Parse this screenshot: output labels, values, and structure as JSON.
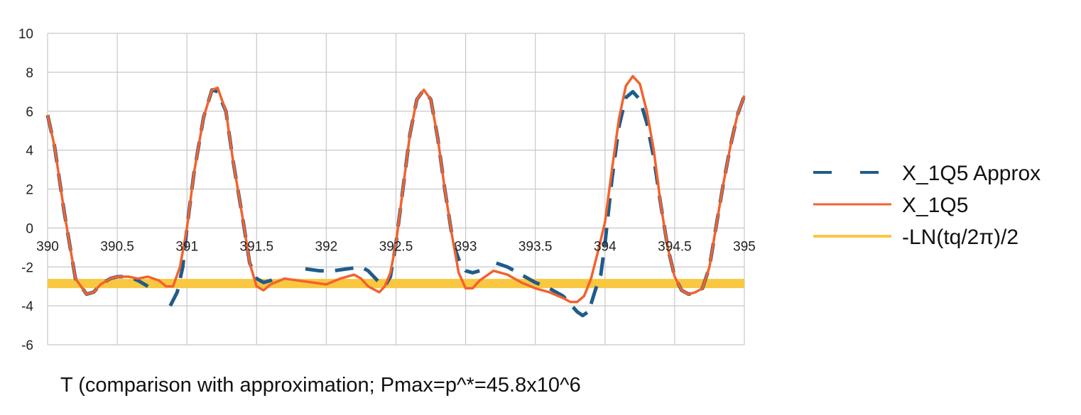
{
  "chart_data": {
    "type": "line",
    "xlabel": "T (comparison with approximation; Pmax=p^*=45.8x10^6",
    "ylabel": "",
    "xlim": [
      390,
      395
    ],
    "ylim": [
      -6,
      10
    ],
    "grid": true,
    "legend_position": "right",
    "x_ticks": [
      "390",
      "390.5",
      "391",
      "391.5",
      "392",
      "392.5",
      "393",
      "393.5",
      "394",
      "394.5",
      "395"
    ],
    "y_ticks": [
      "10",
      "8",
      "6",
      "4",
      "2",
      "0",
      "-2",
      "-4",
      "-6"
    ],
    "series": [
      {
        "name": "X_1Q5 Approx",
        "color": "#1f5c8a",
        "style": "dashed",
        "segments": [
          {
            "x": [
              390.0,
              390.05,
              390.12,
              390.2,
              390.28,
              390.33,
              390.38,
              390.45,
              390.5,
              390.58,
              390.65,
              390.72
            ],
            "y": [
              5.8,
              4.2,
              0.8,
              -2.6,
              -3.4,
              -3.3,
              -2.9,
              -2.6,
              -2.5,
              -2.5,
              -2.7,
              -3.0
            ]
          },
          {
            "x": [
              390.88,
              390.93,
              390.97,
              391.0,
              391.05,
              391.12,
              391.18,
              391.22,
              391.28,
              391.33,
              391.4,
              391.45,
              391.5,
              391.55,
              391.6,
              391.66
            ],
            "y": [
              -4.0,
              -3.3,
              -2.0,
              0.0,
              2.8,
              5.7,
              7.1,
              7.0,
              6.0,
              3.5,
              0.5,
              -1.8,
              -2.6,
              -2.8,
              -2.7,
              -2.4
            ]
          },
          {
            "x": [
              391.85,
              391.95,
              392.05,
              392.15,
              392.25,
              392.3,
              392.38,
              392.42,
              392.46,
              392.5,
              392.55,
              392.6,
              392.65,
              392.7,
              392.75,
              392.8,
              392.85,
              392.9,
              392.93,
              392.96,
              393.0,
              393.05,
              393.1
            ],
            "y": [
              -2.1,
              -2.2,
              -2.2,
              -2.1,
              -2.0,
              -2.2,
              -2.8,
              -3.0,
              -2.5,
              -0.8,
              2.0,
              4.8,
              6.6,
              7.1,
              6.6,
              4.6,
              2.0,
              -0.3,
              -1.2,
              -1.8,
              -2.2,
              -2.3,
              -2.2
            ]
          },
          {
            "x": [
              393.22,
              393.3,
              393.4,
              393.5,
              393.6,
              393.7,
              393.75,
              393.8,
              393.84,
              393.88
            ],
            "y": [
              -1.8,
              -2.0,
              -2.4,
              -2.8,
              -3.1,
              -3.5,
              -3.9,
              -4.3,
              -4.5,
              -4.3
            ]
          },
          {
            "x": [
              393.9,
              393.93,
              393.97,
              394.0,
              394.05,
              394.1,
              394.15,
              394.2,
              394.25,
              394.3,
              394.35,
              394.4,
              394.45,
              394.5,
              394.55,
              394.6,
              394.65,
              394.7,
              394.75,
              394.8,
              394.85,
              394.9,
              394.95,
              395.0
            ],
            "y": [
              -3.9,
              -3.2,
              -2.4,
              -0.8,
              2.5,
              5.2,
              6.7,
              7.0,
              6.6,
              5.4,
              3.6,
              1.2,
              -1.0,
              -2.5,
              -3.2,
              -3.4,
              -3.3,
              -3.1,
              -2.0,
              0.2,
              2.3,
              4.2,
              5.8,
              6.8
            ]
          }
        ]
      },
      {
        "name": "X_1Q5",
        "color": "#f2622e",
        "style": "solid",
        "x": [
          390.0,
          390.05,
          390.12,
          390.2,
          390.28,
          390.33,
          390.38,
          390.45,
          390.5,
          390.58,
          390.65,
          390.72,
          390.8,
          390.85,
          390.9,
          390.95,
          391.0,
          391.05,
          391.12,
          391.18,
          391.22,
          391.28,
          391.33,
          391.4,
          391.45,
          391.5,
          391.55,
          391.6,
          391.7,
          391.8,
          391.9,
          392.0,
          392.1,
          392.2,
          392.25,
          392.3,
          392.38,
          392.42,
          392.46,
          392.5,
          392.55,
          392.6,
          392.65,
          392.7,
          392.75,
          392.8,
          392.85,
          392.9,
          392.95,
          393.0,
          393.05,
          393.1,
          393.2,
          393.3,
          393.4,
          393.5,
          393.6,
          393.7,
          393.75,
          393.8,
          393.85,
          393.9,
          393.95,
          394.0,
          394.05,
          394.1,
          394.15,
          394.2,
          394.25,
          394.3,
          394.35,
          394.4,
          394.45,
          394.5,
          394.55,
          394.6,
          394.65,
          394.7,
          394.75,
          394.8,
          394.85,
          394.9,
          394.95,
          395.0
        ],
        "y": [
          5.8,
          4.2,
          0.8,
          -2.6,
          -3.4,
          -3.3,
          -2.9,
          -2.6,
          -2.5,
          -2.5,
          -2.6,
          -2.5,
          -2.7,
          -3.0,
          -3.0,
          -2.0,
          0.0,
          2.8,
          5.7,
          7.1,
          7.2,
          6.0,
          3.5,
          0.5,
          -1.8,
          -3.0,
          -3.2,
          -2.9,
          -2.6,
          -2.7,
          -2.8,
          -2.9,
          -2.6,
          -2.4,
          -2.6,
          -3.0,
          -3.3,
          -3.0,
          -2.3,
          -0.8,
          2.0,
          4.8,
          6.6,
          7.1,
          6.6,
          4.6,
          2.0,
          -0.3,
          -2.3,
          -3.1,
          -3.1,
          -2.7,
          -2.2,
          -2.4,
          -2.8,
          -3.1,
          -3.3,
          -3.6,
          -3.8,
          -3.8,
          -3.5,
          -2.6,
          -1.2,
          0.3,
          3.0,
          5.6,
          7.3,
          7.8,
          7.4,
          6.0,
          4.0,
          1.2,
          -1.0,
          -2.5,
          -3.2,
          -3.4,
          -3.3,
          -3.1,
          -2.0,
          0.2,
          2.3,
          4.2,
          5.8,
          6.8
        ]
      },
      {
        "name": "-LN(tq/2π)/2",
        "color": "#f9c740",
        "style": "solid-thick",
        "x": [
          390,
          395
        ],
        "y": [
          -2.85,
          -2.85
        ]
      }
    ]
  }
}
